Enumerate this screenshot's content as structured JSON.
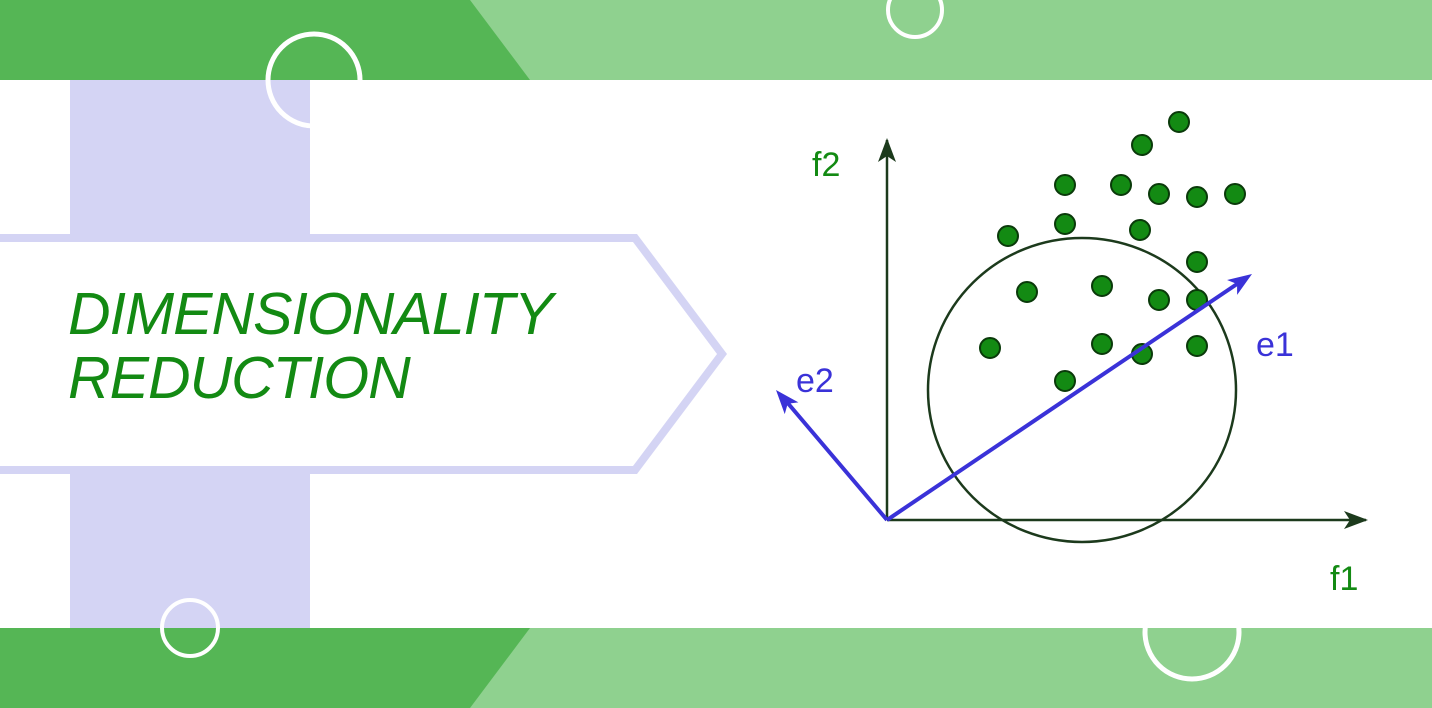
{
  "title": {
    "line1": "DIMENSIONALITY",
    "line2": "REDUCTION"
  },
  "colors": {
    "band_dark": "#55b655",
    "band_light": "#8fd18f",
    "lavender": "#d4d4f4",
    "title_text": "#138a13",
    "axis": "#1c3a1c",
    "axis_label": "#138a13",
    "point_fill": "#138a13",
    "eigen": "#3a32d8"
  },
  "diagram": {
    "axis_labels": {
      "f1": "f1",
      "f2": "f2"
    },
    "vector_labels": {
      "e1": "e1",
      "e2": "e2"
    },
    "points": [
      {
        "f1": 2.55,
        "f2": 3.75
      },
      {
        "f1": 2.92,
        "f2": 3.98
      },
      {
        "f1": 1.78,
        "f2": 3.35
      },
      {
        "f1": 2.34,
        "f2": 3.35
      },
      {
        "f1": 2.72,
        "f2": 3.26
      },
      {
        "f1": 3.1,
        "f2": 3.23
      },
      {
        "f1": 3.48,
        "f2": 3.26
      },
      {
        "f1": 1.21,
        "f2": 2.84
      },
      {
        "f1": 1.78,
        "f2": 2.96
      },
      {
        "f1": 2.53,
        "f2": 2.9
      },
      {
        "f1": 3.1,
        "f2": 2.58
      },
      {
        "f1": 1.4,
        "f2": 2.28
      },
      {
        "f1": 2.15,
        "f2": 2.34
      },
      {
        "f1": 2.72,
        "f2": 2.2
      },
      {
        "f1": 3.1,
        "f2": 2.2
      },
      {
        "f1": 1.03,
        "f2": 1.72
      },
      {
        "f1": 2.15,
        "f2": 1.76
      },
      {
        "f1": 2.55,
        "f2": 1.66
      },
      {
        "f1": 3.1,
        "f2": 1.74
      },
      {
        "f1": 1.78,
        "f2": 1.39
      }
    ]
  }
}
